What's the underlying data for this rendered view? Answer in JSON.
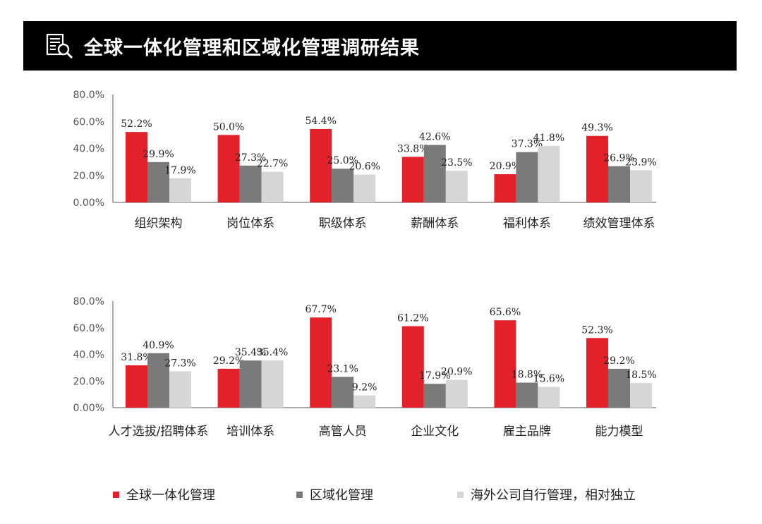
{
  "title": "全球一体化管理和区域化管理调研结果",
  "colors": {
    "global": "#e3212a",
    "regional": "#7a7a7a",
    "independent": "#d6d6d6",
    "axis": "#555555",
    "text": "#222222",
    "title_bg": "#000000"
  },
  "icon": "document-search-icon",
  "legend": [
    {
      "label": "全球一体化管理",
      "color": "#e3212a"
    },
    {
      "label": "区域化管理",
      "color": "#7a7a7a"
    },
    {
      "label": "海外公司自行管理，相对独立",
      "color": "#d6d6d6"
    }
  ],
  "chart_data": [
    {
      "type": "bar",
      "categories": [
        "组织架构",
        "岗位体系",
        "职级体系",
        "薪酬体系",
        "福利体系",
        "绩效管理体系"
      ],
      "yticks": [
        "80.0%",
        "60.0%",
        "40.0%",
        "20.0%",
        "0.00%"
      ],
      "ylim": [
        0,
        80
      ],
      "series": [
        {
          "name": "全球一体化管理",
          "values": [
            52.2,
            50.0,
            54.4,
            33.8,
            20.9,
            49.3
          ],
          "labels": [
            "52.2%",
            "50.0%",
            "54.4%",
            "33.8%",
            "20.9%",
            "49.3%"
          ]
        },
        {
          "name": "区域化管理",
          "values": [
            29.9,
            27.3,
            25.0,
            42.6,
            37.3,
            26.9
          ],
          "labels": [
            "29.9%",
            "27.3%",
            "25.0%",
            "42.6%",
            "37.3%",
            "26.9%"
          ]
        },
        {
          "name": "海外公司自行管理，相对独立",
          "values": [
            17.9,
            22.7,
            20.6,
            23.5,
            41.8,
            23.9
          ],
          "labels": [
            "17.9%",
            "22.7%",
            "20.6%",
            "23.5%",
            "41.8%",
            "23.9%"
          ]
        }
      ]
    },
    {
      "type": "bar",
      "categories": [
        "人才选拔/招聘体系",
        "培训体系",
        "高管人员",
        "企业文化",
        "雇主品牌",
        "能力模型"
      ],
      "yticks": [
        "80.0%",
        "60.0%",
        "40.0%",
        "20.0%",
        "0.00%"
      ],
      "ylim": [
        0,
        80
      ],
      "series": [
        {
          "name": "全球一体化管理",
          "values": [
            31.8,
            29.2,
            67.7,
            61.2,
            65.6,
            52.3
          ],
          "labels": [
            "31.8%",
            "29.2%",
            "67.7%",
            "61.2%",
            "65.6%",
            "52.3%"
          ]
        },
        {
          "name": "区域化管理",
          "values": [
            40.9,
            35.4,
            23.1,
            17.9,
            18.8,
            29.2
          ],
          "labels": [
            "40.9%",
            "35.4%",
            "23.1%",
            "17.9%",
            "18.8%",
            "29.2%"
          ]
        },
        {
          "name": "海外公司自行管理，相对独立",
          "values": [
            27.3,
            35.4,
            9.2,
            20.9,
            15.6,
            18.5
          ],
          "labels": [
            "27.3%",
            "35.4%",
            "9.2%",
            "20.9%",
            "15.6%",
            "18.5%"
          ]
        }
      ]
    }
  ]
}
